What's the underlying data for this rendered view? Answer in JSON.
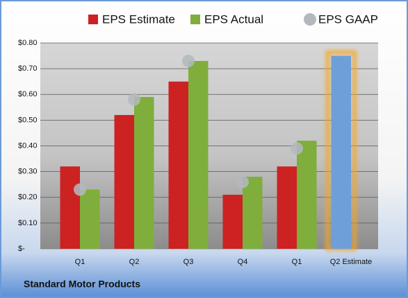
{
  "chart_data": {
    "type": "bar",
    "caption": "Standard Motor Products",
    "categories": [
      "Q1",
      "Q2",
      "Q3",
      "Q4",
      "Q1",
      "Q2 Estimate"
    ],
    "series": [
      {
        "name": "EPS Estimate",
        "type": "bar",
        "color": "#cc2222",
        "colors": [
          "#cc2222",
          "#cc2222",
          "#cc2222",
          "#cc2222",
          "#cc2222",
          "#6f9fd8"
        ],
        "values": [
          0.32,
          0.52,
          0.65,
          0.21,
          0.32,
          0.75
        ]
      },
      {
        "name": "EPS Actual",
        "type": "bar",
        "color": "#7fae3c",
        "values": [
          0.23,
          0.59,
          0.73,
          0.28,
          0.42,
          null
        ]
      },
      {
        "name": "EPS GAAP",
        "type": "scatter",
        "color": "#b4b8be",
        "values": [
          0.23,
          0.58,
          0.73,
          0.26,
          0.39,
          null
        ]
      }
    ],
    "ylim": [
      0,
      0.8
    ],
    "yticks": [
      {
        "value": 0,
        "label": "$-"
      },
      {
        "value": 0.1,
        "label": "$0.10"
      },
      {
        "value": 0.2,
        "label": "$0.20"
      },
      {
        "value": 0.3,
        "label": "$0.30"
      },
      {
        "value": 0.4,
        "label": "$0.40"
      },
      {
        "value": 0.5,
        "label": "$0.50"
      },
      {
        "value": 0.6,
        "label": "$0.60"
      },
      {
        "value": 0.7,
        "label": "$0.70"
      },
      {
        "value": 0.8,
        "label": "$0.80"
      }
    ],
    "grid": true,
    "legend": "top"
  }
}
